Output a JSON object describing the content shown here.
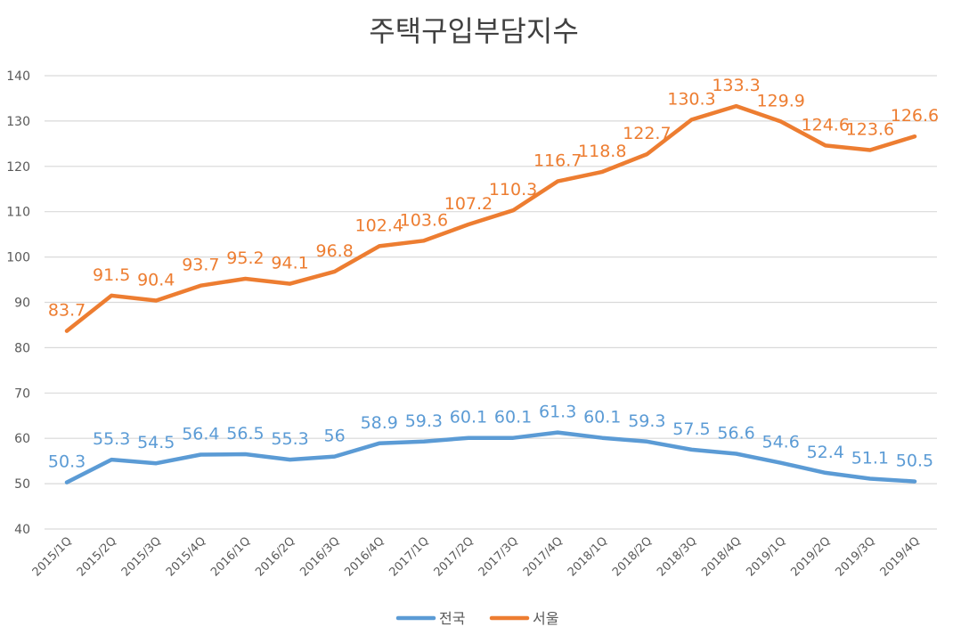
{
  "chart_data": {
    "type": "line",
    "title": "주택구입부담지수",
    "xlabel": "",
    "ylabel": "",
    "ylim": [
      40,
      140
    ],
    "yticks": [
      40,
      50,
      60,
      70,
      80,
      90,
      100,
      110,
      120,
      130,
      140
    ],
    "grid": true,
    "legend_position": "bottom",
    "categories": [
      "2015/1Q",
      "2015/2Q",
      "2015/3Q",
      "2015/4Q",
      "2016/1Q",
      "2016/2Q",
      "2016/3Q",
      "2016/4Q",
      "2017/1Q",
      "2017/2Q",
      "2017/3Q",
      "2017/4Q",
      "2018/1Q",
      "2018/2Q",
      "2018/3Q",
      "2018/4Q",
      "2019/1Q",
      "2019/2Q",
      "2019/3Q",
      "2019/4Q"
    ],
    "series": [
      {
        "name": "전국",
        "color": "#5b9bd5",
        "values": [
          50.3,
          55.3,
          54.5,
          56.4,
          56.5,
          55.3,
          56,
          58.9,
          59.3,
          60.1,
          60.1,
          61.3,
          60.1,
          59.3,
          57.5,
          56.6,
          54.6,
          52.4,
          51.1,
          50.5
        ],
        "labels": [
          "50.3",
          "55.3",
          "54.5",
          "56.4",
          "56.5",
          "55.3",
          "56",
          "58.9",
          "59.3",
          "60.1",
          "60.1",
          "61.3",
          "60.1",
          "59.3",
          "57.5",
          "56.6",
          "54.6",
          "52.4",
          "51.1",
          "50.5"
        ]
      },
      {
        "name": "서울",
        "color": "#ed7d31",
        "values": [
          83.7,
          91.5,
          90.4,
          93.7,
          95.2,
          94.1,
          96.8,
          102.4,
          103.6,
          107.2,
          110.3,
          116.7,
          118.8,
          122.7,
          130.3,
          133.3,
          129.9,
          124.6,
          123.6,
          126.6
        ],
        "labels": [
          "83.7",
          "91.5",
          "90.4",
          "93.7",
          "95.2",
          "94.1",
          "96.8",
          "102.4",
          "103.6",
          "107.2",
          "110.3",
          "116.7",
          "118.8",
          "122.7",
          "130.3",
          "133.3",
          "129.9",
          "124.6",
          "123.6",
          "126.6"
        ]
      }
    ]
  },
  "colors": {
    "grid": "#d9d9d9",
    "axis_text": "#595959",
    "title": "#404040"
  }
}
